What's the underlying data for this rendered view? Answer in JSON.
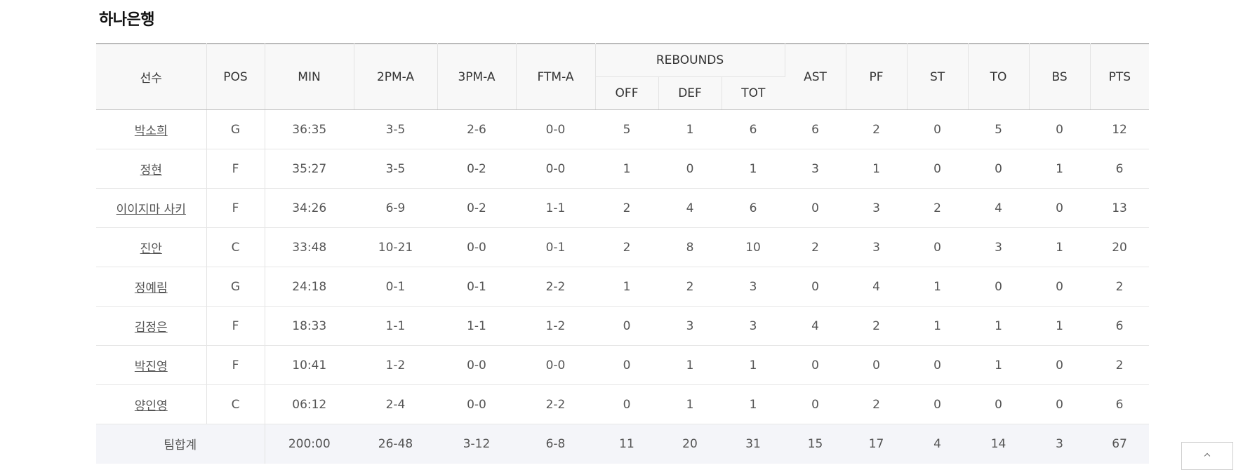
{
  "team": {
    "name": "하나은행"
  },
  "headers": {
    "player": "선수",
    "pos": "POS",
    "min": "MIN",
    "fg2": "2PM-A",
    "fg3": "3PM-A",
    "ft": "FTM-A",
    "rebounds": "REBOUNDS",
    "off": "OFF",
    "def": "DEF",
    "tot": "TOT",
    "ast": "AST",
    "pf": "PF",
    "st": "ST",
    "to": "TO",
    "bs": "BS",
    "pts": "PTS"
  },
  "players": [
    {
      "name": "박소희",
      "pos": "G",
      "min": "36:35",
      "fg2": "3-5",
      "fg3": "2-6",
      "ft": "0-0",
      "off": "5",
      "def": "1",
      "tot": "6",
      "ast": "6",
      "pf": "2",
      "st": "0",
      "to": "5",
      "bs": "0",
      "pts": "12"
    },
    {
      "name": "정현",
      "pos": "F",
      "min": "35:27",
      "fg2": "3-5",
      "fg3": "0-2",
      "ft": "0-0",
      "off": "1",
      "def": "0",
      "tot": "1",
      "ast": "3",
      "pf": "1",
      "st": "0",
      "to": "0",
      "bs": "1",
      "pts": "6"
    },
    {
      "name": "이이지마 사키",
      "pos": "F",
      "min": "34:26",
      "fg2": "6-9",
      "fg3": "0-2",
      "ft": "1-1",
      "off": "2",
      "def": "4",
      "tot": "6",
      "ast": "0",
      "pf": "3",
      "st": "2",
      "to": "4",
      "bs": "0",
      "pts": "13"
    },
    {
      "name": "진안",
      "pos": "C",
      "min": "33:48",
      "fg2": "10-21",
      "fg3": "0-0",
      "ft": "0-1",
      "off": "2",
      "def": "8",
      "tot": "10",
      "ast": "2",
      "pf": "3",
      "st": "0",
      "to": "3",
      "bs": "1",
      "pts": "20"
    },
    {
      "name": "정예림",
      "pos": "G",
      "min": "24:18",
      "fg2": "0-1",
      "fg3": "0-1",
      "ft": "2-2",
      "off": "1",
      "def": "2",
      "tot": "3",
      "ast": "0",
      "pf": "4",
      "st": "1",
      "to": "0",
      "bs": "0",
      "pts": "2"
    },
    {
      "name": "김정은",
      "pos": "F",
      "min": "18:33",
      "fg2": "1-1",
      "fg3": "1-1",
      "ft": "1-2",
      "off": "0",
      "def": "3",
      "tot": "3",
      "ast": "4",
      "pf": "2",
      "st": "1",
      "to": "1",
      "bs": "1",
      "pts": "6"
    },
    {
      "name": "박진영",
      "pos": "F",
      "min": "10:41",
      "fg2": "1-2",
      "fg3": "0-0",
      "ft": "0-0",
      "off": "0",
      "def": "1",
      "tot": "1",
      "ast": "0",
      "pf": "0",
      "st": "0",
      "to": "1",
      "bs": "0",
      "pts": "2"
    },
    {
      "name": "양인영",
      "pos": "C",
      "min": "06:12",
      "fg2": "2-4",
      "fg3": "0-0",
      "ft": "2-2",
      "off": "0",
      "def": "1",
      "tot": "1",
      "ast": "0",
      "pf": "2",
      "st": "0",
      "to": "0",
      "bs": "0",
      "pts": "6"
    }
  ],
  "totals": {
    "label": "팀합계",
    "min": "200:00",
    "fg2": "26-48",
    "fg3": "3-12",
    "ft": "6-8",
    "off": "11",
    "def": "20",
    "tot": "31",
    "ast": "15",
    "pf": "17",
    "st": "4",
    "to": "14",
    "bs": "3",
    "pts": "67"
  },
  "icons": {
    "scroll_top": "chevron-up-icon"
  }
}
